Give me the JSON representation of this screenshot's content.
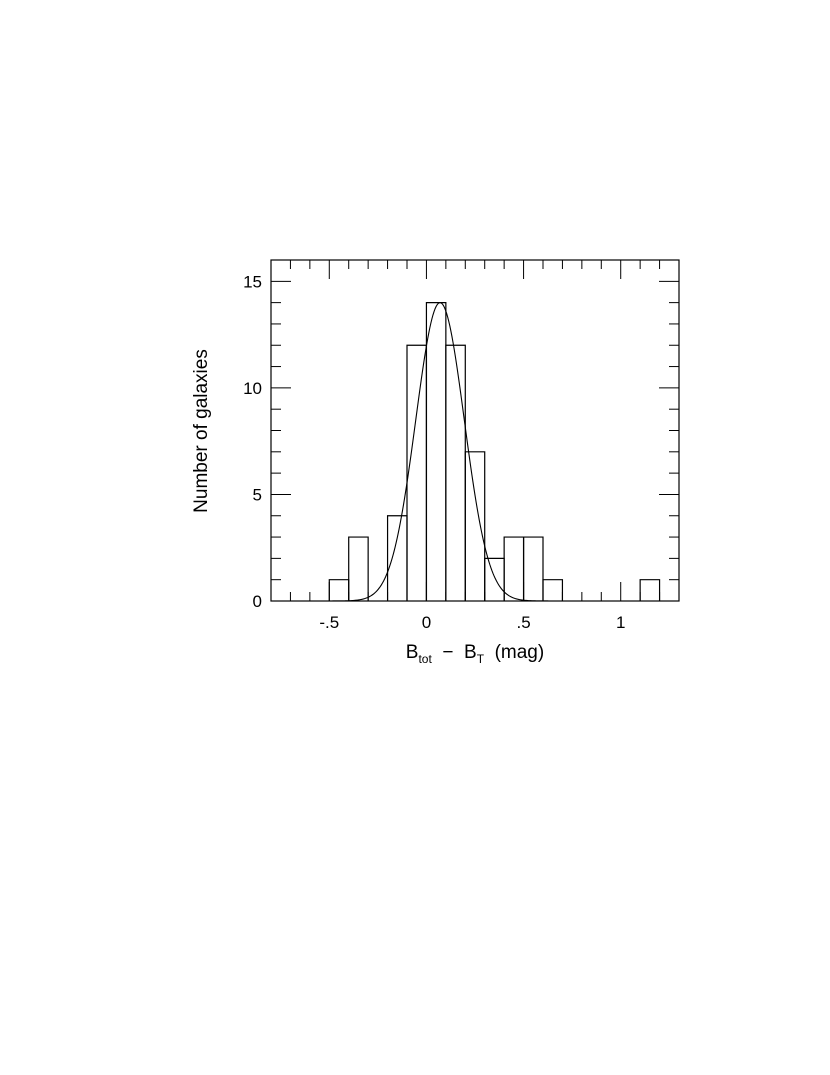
{
  "chart_data": {
    "type": "bar",
    "xlabel": {
      "main": "B",
      "sub1": "tot",
      "mid": "  −  B",
      "sub2": "T",
      "tail": "  (mag)"
    },
    "ylabel": "Number of galaxies",
    "xlim": [
      -0.8,
      1.3
    ],
    "ylim": [
      0,
      16
    ],
    "x_ticks": [
      {
        "value": -0.5,
        "label": "-.5"
      },
      {
        "value": 0,
        "label": "0"
      },
      {
        "value": 0.5,
        "label": ".5"
      },
      {
        "value": 1,
        "label": "1"
      }
    ],
    "y_ticks": [
      {
        "value": 0,
        "label": "0"
      },
      {
        "value": 5,
        "label": "5"
      },
      {
        "value": 10,
        "label": "10"
      },
      {
        "value": 15,
        "label": "15"
      }
    ],
    "x_minor_step": 0.1,
    "y_minor_step": 1,
    "bin_width": 0.1,
    "bins": [
      {
        "x_left": -0.5,
        "count": 1
      },
      {
        "x_left": -0.4,
        "count": 3
      },
      {
        "x_left": -0.3,
        "count": 0
      },
      {
        "x_left": -0.2,
        "count": 4
      },
      {
        "x_left": -0.1,
        "count": 12
      },
      {
        "x_left": 0.0,
        "count": 14
      },
      {
        "x_left": 0.1,
        "count": 12
      },
      {
        "x_left": 0.2,
        "count": 7
      },
      {
        "x_left": 0.3,
        "count": 2
      },
      {
        "x_left": 0.4,
        "count": 3
      },
      {
        "x_left": 0.5,
        "count": 3
      },
      {
        "x_left": 0.6,
        "count": 1
      },
      {
        "x_left": 1.1,
        "count": 1
      }
    ],
    "gaussian_fit": {
      "amplitude": 14,
      "mean": 0.07,
      "sigma": 0.125
    }
  }
}
